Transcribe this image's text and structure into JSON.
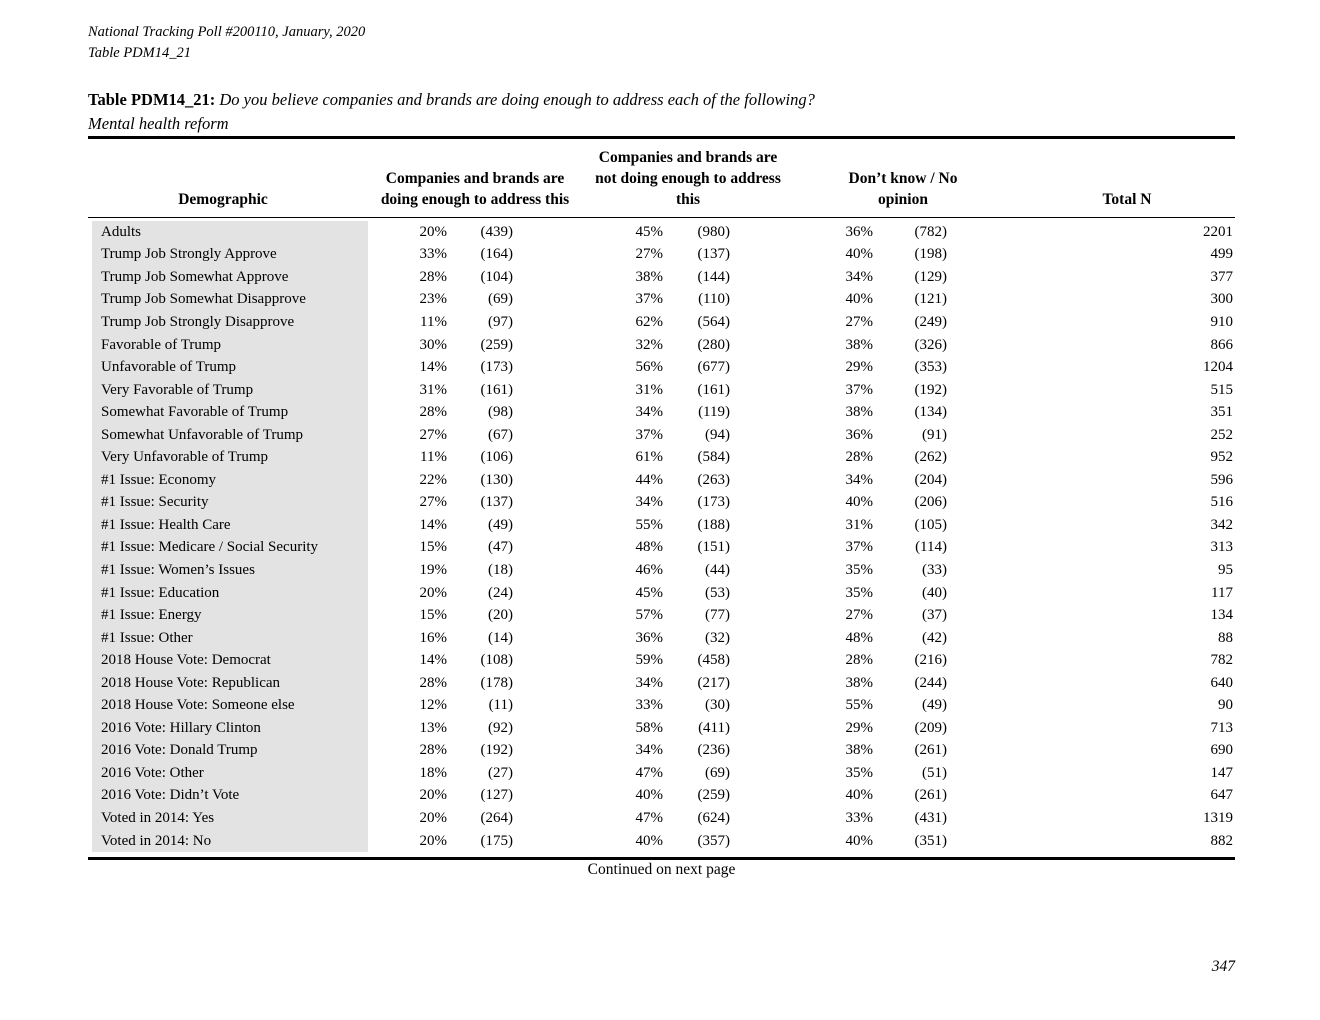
{
  "page": {
    "meta_line1": "National Tracking Poll #200110, January, 2020",
    "meta_line2": "Table PDM14_21",
    "continued": "Continued on next page",
    "page_number": "347"
  },
  "table": {
    "title_label": "Table PDM14_21:",
    "title_question": "Do you believe companies and brands are doing enough to address each of the following?",
    "title_topic": "Mental health reform",
    "columns": [
      "Demographic",
      "Companies and brands are doing enough to address this",
      "Companies and brands are not doing enough to address this",
      "Don’t know / No opinion",
      "Total N"
    ],
    "rows": [
      {
        "label": "Adults",
        "pct1": "20%",
        "n1": "(439)",
        "pct2": "45%",
        "n2": "(980)",
        "pct3": "36%",
        "n3": "(782)",
        "total": "2201"
      },
      {
        "label": "Trump Job Strongly Approve",
        "pct1": "33%",
        "n1": "(164)",
        "pct2": "27%",
        "n2": "(137)",
        "pct3": "40%",
        "n3": "(198)",
        "total": "499"
      },
      {
        "label": "Trump Job Somewhat Approve",
        "pct1": "28%",
        "n1": "(104)",
        "pct2": "38%",
        "n2": "(144)",
        "pct3": "34%",
        "n3": "(129)",
        "total": "377"
      },
      {
        "label": "Trump Job Somewhat Disapprove",
        "pct1": "23%",
        "n1": "(69)",
        "pct2": "37%",
        "n2": "(110)",
        "pct3": "40%",
        "n3": "(121)",
        "total": "300"
      },
      {
        "label": "Trump Job Strongly Disapprove",
        "pct1": "11%",
        "n1": "(97)",
        "pct2": "62%",
        "n2": "(564)",
        "pct3": "27%",
        "n3": "(249)",
        "total": "910"
      },
      {
        "label": "Favorable of Trump",
        "pct1": "30%",
        "n1": "(259)",
        "pct2": "32%",
        "n2": "(280)",
        "pct3": "38%",
        "n3": "(326)",
        "total": "866"
      },
      {
        "label": "Unfavorable of Trump",
        "pct1": "14%",
        "n1": "(173)",
        "pct2": "56%",
        "n2": "(677)",
        "pct3": "29%",
        "n3": "(353)",
        "total": "1204"
      },
      {
        "label": "Very Favorable of Trump",
        "pct1": "31%",
        "n1": "(161)",
        "pct2": "31%",
        "n2": "(161)",
        "pct3": "37%",
        "n3": "(192)",
        "total": "515"
      },
      {
        "label": "Somewhat Favorable of Trump",
        "pct1": "28%",
        "n1": "(98)",
        "pct2": "34%",
        "n2": "(119)",
        "pct3": "38%",
        "n3": "(134)",
        "total": "351"
      },
      {
        "label": "Somewhat Unfavorable of Trump",
        "pct1": "27%",
        "n1": "(67)",
        "pct2": "37%",
        "n2": "(94)",
        "pct3": "36%",
        "n3": "(91)",
        "total": "252"
      },
      {
        "label": "Very Unfavorable of Trump",
        "pct1": "11%",
        "n1": "(106)",
        "pct2": "61%",
        "n2": "(584)",
        "pct3": "28%",
        "n3": "(262)",
        "total": "952"
      },
      {
        "label": "#1 Issue: Economy",
        "pct1": "22%",
        "n1": "(130)",
        "pct2": "44%",
        "n2": "(263)",
        "pct3": "34%",
        "n3": "(204)",
        "total": "596"
      },
      {
        "label": "#1 Issue: Security",
        "pct1": "27%",
        "n1": "(137)",
        "pct2": "34%",
        "n2": "(173)",
        "pct3": "40%",
        "n3": "(206)",
        "total": "516"
      },
      {
        "label": "#1 Issue: Health Care",
        "pct1": "14%",
        "n1": "(49)",
        "pct2": "55%",
        "n2": "(188)",
        "pct3": "31%",
        "n3": "(105)",
        "total": "342"
      },
      {
        "label": "#1 Issue: Medicare / Social Security",
        "pct1": "15%",
        "n1": "(47)",
        "pct2": "48%",
        "n2": "(151)",
        "pct3": "37%",
        "n3": "(114)",
        "total": "313"
      },
      {
        "label": "#1 Issue: Women’s Issues",
        "pct1": "19%",
        "n1": "(18)",
        "pct2": "46%",
        "n2": "(44)",
        "pct3": "35%",
        "n3": "(33)",
        "total": "95"
      },
      {
        "label": "#1 Issue: Education",
        "pct1": "20%",
        "n1": "(24)",
        "pct2": "45%",
        "n2": "(53)",
        "pct3": "35%",
        "n3": "(40)",
        "total": "117"
      },
      {
        "label": "#1 Issue: Energy",
        "pct1": "15%",
        "n1": "(20)",
        "pct2": "57%",
        "n2": "(77)",
        "pct3": "27%",
        "n3": "(37)",
        "total": "134"
      },
      {
        "label": "#1 Issue: Other",
        "pct1": "16%",
        "n1": "(14)",
        "pct2": "36%",
        "n2": "(32)",
        "pct3": "48%",
        "n3": "(42)",
        "total": "88"
      },
      {
        "label": "2018 House Vote: Democrat",
        "pct1": "14%",
        "n1": "(108)",
        "pct2": "59%",
        "n2": "(458)",
        "pct3": "28%",
        "n3": "(216)",
        "total": "782"
      },
      {
        "label": "2018 House Vote: Republican",
        "pct1": "28%",
        "n1": "(178)",
        "pct2": "34%",
        "n2": "(217)",
        "pct3": "38%",
        "n3": "(244)",
        "total": "640"
      },
      {
        "label": "2018 House Vote: Someone else",
        "pct1": "12%",
        "n1": "(11)",
        "pct2": "33%",
        "n2": "(30)",
        "pct3": "55%",
        "n3": "(49)",
        "total": "90"
      },
      {
        "label": "2016 Vote: Hillary Clinton",
        "pct1": "13%",
        "n1": "(92)",
        "pct2": "58%",
        "n2": "(411)",
        "pct3": "29%",
        "n3": "(209)",
        "total": "713"
      },
      {
        "label": "2016 Vote: Donald Trump",
        "pct1": "28%",
        "n1": "(192)",
        "pct2": "34%",
        "n2": "(236)",
        "pct3": "38%",
        "n3": "(261)",
        "total": "690"
      },
      {
        "label": "2016 Vote: Other",
        "pct1": "18%",
        "n1": "(27)",
        "pct2": "47%",
        "n2": "(69)",
        "pct3": "35%",
        "n3": "(51)",
        "total": "147"
      },
      {
        "label": "2016 Vote: Didn’t Vote",
        "pct1": "20%",
        "n1": "(127)",
        "pct2": "40%",
        "n2": "(259)",
        "pct3": "40%",
        "n3": "(261)",
        "total": "647"
      },
      {
        "label": "Voted in 2014: Yes",
        "pct1": "20%",
        "n1": "(264)",
        "pct2": "47%",
        "n2": "(624)",
        "pct3": "33%",
        "n3": "(431)",
        "total": "1319"
      },
      {
        "label": "Voted in 2014: No",
        "pct1": "20%",
        "n1": "(175)",
        "pct2": "40%",
        "n2": "(357)",
        "pct3": "40%",
        "n3": "(351)",
        "total": "882"
      }
    ]
  }
}
